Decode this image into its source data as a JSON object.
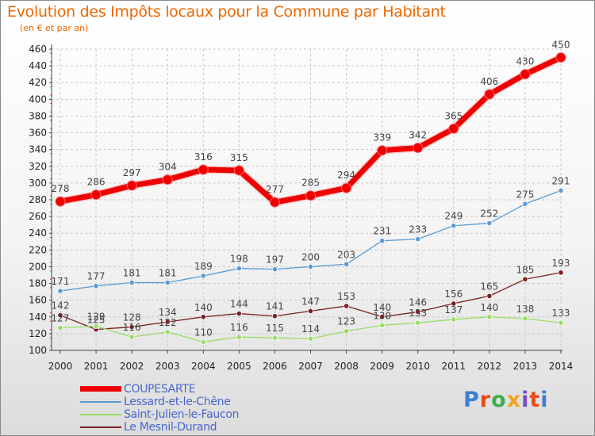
{
  "title": "Evolution des Impôts locaux pour la Commune par Habitant",
  "subtitle": "(en € et par an)",
  "logo": {
    "text": "Proxiti",
    "colors": [
      "#3b7fd4",
      "#e84a1a",
      "#3fae49",
      "#f0a21c",
      "#7a4fbf",
      "#e84a1a",
      "#3b7fd4"
    ]
  },
  "chart_data": {
    "type": "line",
    "x": [
      "2000",
      "2001",
      "2002",
      "2003",
      "2004",
      "2005",
      "2006",
      "2007",
      "2008",
      "2009",
      "2010",
      "2011",
      "2012",
      "2013",
      "2014"
    ],
    "ylim": [
      100,
      460
    ],
    "yticks": [
      100,
      120,
      140,
      160,
      180,
      200,
      220,
      240,
      260,
      280,
      300,
      320,
      340,
      360,
      380,
      400,
      420,
      440,
      460
    ],
    "grid": true,
    "legend_position": "bottom-left",
    "series": [
      {
        "name": "COUPESARTE",
        "color": "#ee0000",
        "width": 7,
        "marker": 6,
        "values": [
          278,
          286,
          297,
          304,
          316,
          315,
          277,
          285,
          294,
          339,
          342,
          365,
          406,
          430,
          450
        ]
      },
      {
        "name": "Lessard-et-le-Chêne",
        "color": "#5b9bd5",
        "width": 1.3,
        "marker": 3.2,
        "values": [
          171,
          177,
          181,
          181,
          189,
          198,
          197,
          200,
          203,
          231,
          233,
          249,
          252,
          275,
          291
        ]
      },
      {
        "name": "Saint-Julien-le-Faucon",
        "color": "#99dd66",
        "width": 1.3,
        "marker": 3.2,
        "values": [
          127,
          129,
          116,
          122,
          110,
          116,
          115,
          114,
          123,
          130,
          133,
          137,
          140,
          138,
          133
        ]
      },
      {
        "name": "Le Mesnil-Durand",
        "color": "#7a2020",
        "width": 1.3,
        "marker": 3.2,
        "values": [
          142,
          125,
          128,
          134,
          140,
          144,
          141,
          147,
          153,
          140,
          146,
          156,
          165,
          185,
          193
        ]
      }
    ],
    "data_labels": [
      {
        "series": 0,
        "values": [
          "278",
          "286",
          "297",
          "304",
          "316",
          "315",
          "277",
          "285",
          "294",
          "339",
          "342",
          "365",
          "406",
          "430",
          "450"
        ]
      },
      {
        "series": 1,
        "values": [
          "171",
          "177",
          "181",
          "181",
          "189",
          "198",
          "197",
          "200",
          "203",
          "231",
          "233",
          "249",
          "252",
          "275",
          "291"
        ]
      },
      {
        "series": 2,
        "values": [
          "127",
          "129",
          "116",
          "122",
          "110",
          "116",
          "115",
          "114",
          "123",
          "130",
          "133",
          "137",
          "140",
          "138",
          "133"
        ]
      },
      {
        "series": 3,
        "values": [
          "142",
          "125",
          "128",
          "134",
          "140",
          "144",
          "141",
          "147",
          "153",
          "140",
          "146",
          "156",
          "165",
          "185",
          "193"
        ]
      }
    ]
  }
}
